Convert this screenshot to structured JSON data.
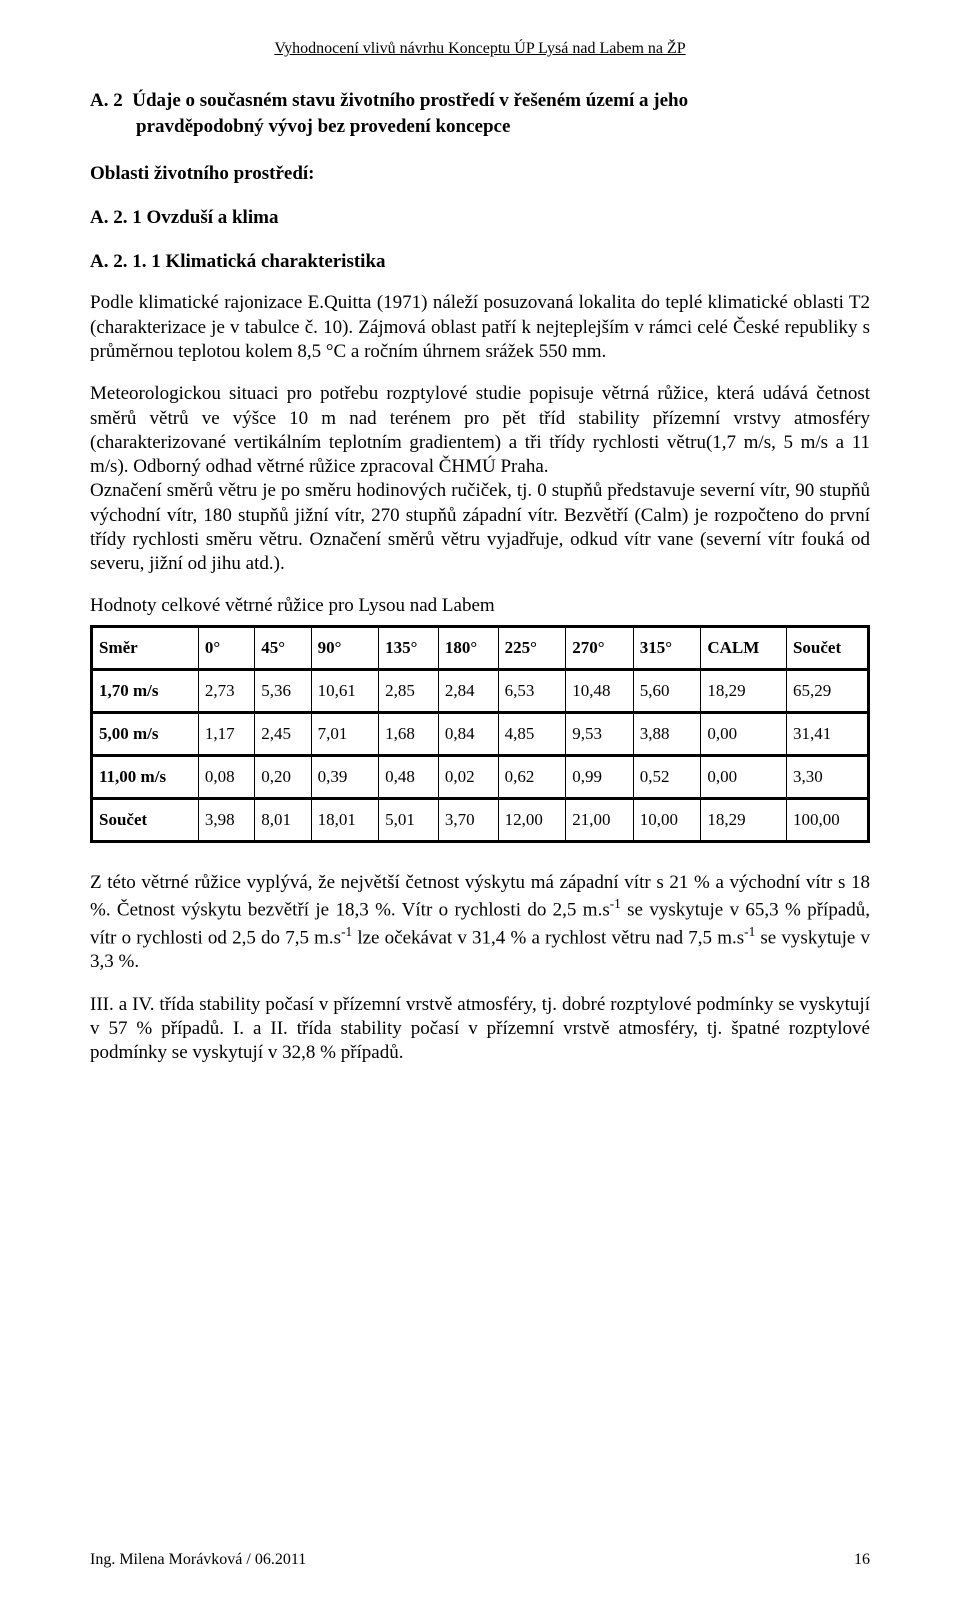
{
  "header": "Vyhodnocení vlivů návrhu Konceptu ÚP Lysá nad Labem na ŽP",
  "sectionA2": {
    "num": "A. 2",
    "line1": "Údaje o současném stavu životního prostředí v řešeném území a jeho",
    "line2": "pravděpodobný vývoj bez provedení koncepce"
  },
  "oblasti_label": "Oblasti životního prostředí:",
  "a21": "A. 2. 1  Ovzduší a klima",
  "a211": "A. 2. 1. 1  Klimatická charakteristika",
  "p1": "Podle klimatické rajonizace E.Quitta (1971) náleží posuzovaná lokalita do teplé klimatické oblasti T2 (charakterizace je v tabulce č. 10). Zájmová oblast patří k nejteplejším v rámci celé České republiky s průměrnou teplotou kolem 8,5 °C a ročním úhrnem srážek 550 mm.",
  "p2": "Meteorologickou situaci pro potřebu rozptylové studie popisuje větrná růžice, která udává četnost směrů větrů ve výšce 10 m nad terénem pro pět tříd stability přízemní vrstvy atmosféry (charakterizované vertikálním teplotním gradientem) a tři třídy rychlosti větru(1,7 m/s, 5 m/s a 11 m/s). Odborný odhad větrné růžice zpracoval ČHMÚ Praha.",
  "p3": "Označení směrů větru je po směru hodinových ručiček, tj. 0 stupňů představuje severní vítr, 90 stupňů východní vítr, 180 stupňů jižní vítr, 270 stupňů západní vítr. Bezvětří (Calm) je rozpočteno do první třídy rychlosti směru větru. Označení směrů větru vyjadřuje, odkud vítr vane (severní vítr fouká od severu, jižní od jihu atd.).",
  "table_caption": "Hodnoty celkové větrné růžice pro Lysou nad Labem",
  "wind_table": {
    "headers": [
      "Směr",
      "0°",
      "45°",
      "90°",
      "135°",
      "180°",
      "225°",
      "270°",
      "315°",
      "CALM",
      "Součet"
    ],
    "rows": [
      [
        "1,70 m/s",
        "2,73",
        "5,36",
        "10,61",
        "2,85",
        "2,84",
        "6,53",
        "10,48",
        "5,60",
        "18,29",
        "65,29"
      ],
      [
        "5,00 m/s",
        "1,17",
        "2,45",
        "7,01",
        "1,68",
        "0,84",
        "4,85",
        "9,53",
        "3,88",
        "0,00",
        "31,41"
      ],
      [
        "11,00 m/s",
        "0,08",
        "0,20",
        "0,39",
        "0,48",
        "0,02",
        "0,62",
        "0,99",
        "0,52",
        "0,00",
        "3,30"
      ],
      [
        "Součet",
        "3,98",
        "8,01",
        "18,01",
        "5,01",
        "3,70",
        "12,00",
        "21,00",
        "10,00",
        "18,29",
        "100,00"
      ]
    ]
  },
  "p4_a": "Z této větrné růžice vyplývá, že největší četnost výskytu má západní vítr s 21 % a východní vítr s 18 %. Četnost výskytu bezvětří je 18,3 %. Vítr o rychlosti do 2,5 m.s",
  "p4_b": " se vyskytuje v 65,3 % případů, vítr o rychlosti od 2,5 do 7,5 m.s",
  "p4_c": " lze očekávat v 31,4 % a rychlost větru nad 7,5 m.s",
  "p4_d": " se vyskytuje v 3,3 %.",
  "neg1": "-1",
  "p5": "III. a IV. třída stability počasí v přízemní vrstvě atmosféry, tj. dobré rozptylové podmínky se vyskytují v 57 % případů. I. a II. třída stability počasí v přízemní vrstvě atmosféry, tj. špatné rozptylové podmínky se vyskytují v 32,8 % případů.",
  "footer": {
    "left": "Ing. Milena Morávková / 06.2011",
    "page": "16"
  }
}
